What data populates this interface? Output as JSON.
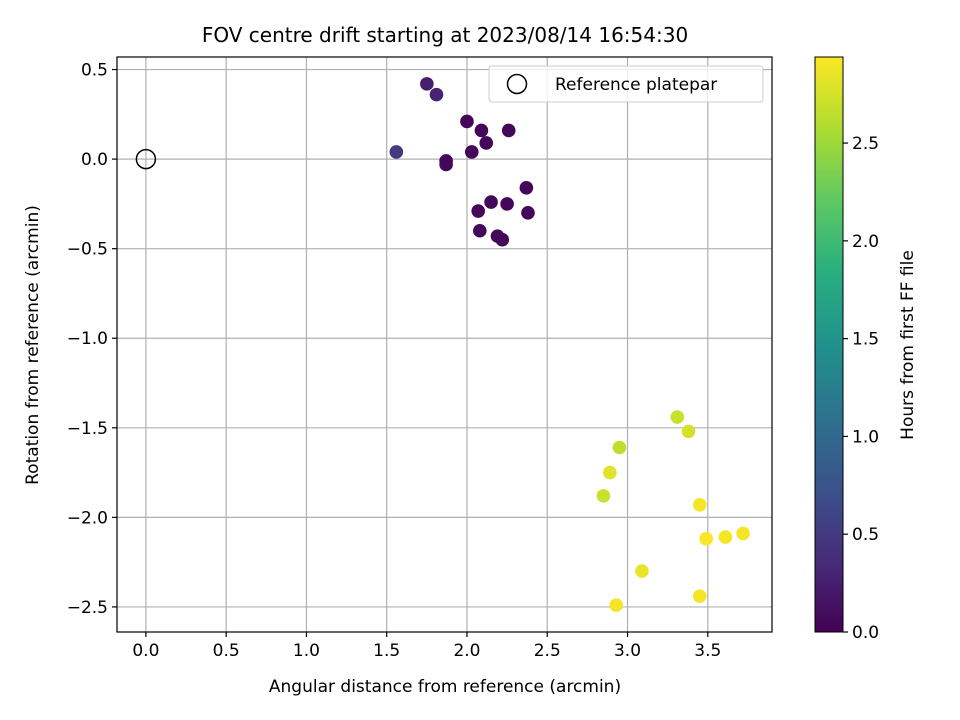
{
  "chart_data": {
    "type": "scatter",
    "title": "FOV centre drift starting at 2023/08/14 16:54:30",
    "xlabel": "Angular distance from reference (arcmin)",
    "ylabel": "Rotation from reference (arcmin)",
    "xlim": [
      -0.18,
      3.9
    ],
    "ylim": [
      -2.64,
      0.57
    ],
    "xticks": [
      0.0,
      0.5,
      1.0,
      1.5,
      2.0,
      2.5,
      3.0,
      3.5
    ],
    "xtick_labels": [
      "0.0",
      "0.5",
      "1.0",
      "1.5",
      "2.0",
      "2.5",
      "3.0",
      "3.5"
    ],
    "yticks": [
      0.5,
      0.0,
      -0.5,
      -1.0,
      -1.5,
      -2.0,
      -2.5
    ],
    "ytick_labels": [
      "0.5",
      "0.0",
      "−0.5",
      "−1.0",
      "−1.5",
      "−2.0",
      "−2.5"
    ],
    "grid": true,
    "legend": {
      "position": "top-right",
      "entries": [
        "Reference platepar"
      ]
    },
    "colormap": "viridis",
    "colorbar": {
      "label": "Hours from first FF file",
      "range": [
        0.0,
        2.94
      ],
      "ticks": [
        0.0,
        0.5,
        1.0,
        1.5,
        2.0,
        2.5
      ],
      "tick_labels": [
        "0.0",
        "0.5",
        "1.0",
        "1.5",
        "2.0",
        "2.5"
      ]
    },
    "reference_point": {
      "x": 0.0,
      "y": 0.0
    },
    "points": [
      {
        "x": 1.75,
        "y": 0.42,
        "h": 0.25
      },
      {
        "x": 1.81,
        "y": 0.36,
        "h": 0.3
      },
      {
        "x": 1.56,
        "y": 0.04,
        "h": 0.5
      },
      {
        "x": 2.0,
        "y": 0.21,
        "h": 0.05
      },
      {
        "x": 2.09,
        "y": 0.16,
        "h": 0.05
      },
      {
        "x": 2.26,
        "y": 0.16,
        "h": 0.05
      },
      {
        "x": 2.12,
        "y": 0.09,
        "h": 0.05
      },
      {
        "x": 2.03,
        "y": 0.04,
        "h": 0.05
      },
      {
        "x": 1.87,
        "y": -0.01,
        "h": 0.05
      },
      {
        "x": 1.87,
        "y": -0.03,
        "h": 0.05
      },
      {
        "x": 2.37,
        "y": -0.16,
        "h": 0.05
      },
      {
        "x": 2.15,
        "y": -0.24,
        "h": 0.05
      },
      {
        "x": 2.25,
        "y": -0.25,
        "h": 0.05
      },
      {
        "x": 2.07,
        "y": -0.29,
        "h": 0.05
      },
      {
        "x": 2.38,
        "y": -0.3,
        "h": 0.05
      },
      {
        "x": 2.08,
        "y": -0.4,
        "h": 0.05
      },
      {
        "x": 2.19,
        "y": -0.43,
        "h": 0.05
      },
      {
        "x": 2.22,
        "y": -0.45,
        "h": 0.05
      },
      {
        "x": 3.31,
        "y": -1.44,
        "h": 2.7
      },
      {
        "x": 3.38,
        "y": -1.52,
        "h": 2.75
      },
      {
        "x": 2.95,
        "y": -1.61,
        "h": 2.65
      },
      {
        "x": 2.89,
        "y": -1.75,
        "h": 2.8
      },
      {
        "x": 2.85,
        "y": -1.88,
        "h": 2.7
      },
      {
        "x": 3.45,
        "y": -1.93,
        "h": 2.9
      },
      {
        "x": 3.72,
        "y": -2.09,
        "h": 2.9
      },
      {
        "x": 3.61,
        "y": -2.11,
        "h": 2.9
      },
      {
        "x": 3.49,
        "y": -2.12,
        "h": 2.92
      },
      {
        "x": 3.09,
        "y": -2.3,
        "h": 2.85
      },
      {
        "x": 3.45,
        "y": -2.44,
        "h": 2.9
      },
      {
        "x": 2.93,
        "y": -2.49,
        "h": 2.9
      }
    ]
  }
}
